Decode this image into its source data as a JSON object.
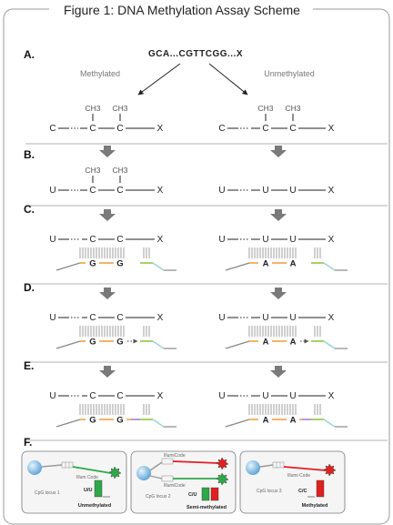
{
  "title": "Figure 1: DNA Methylation Assay Scheme",
  "steps": {
    "A": "A.",
    "B": "B.",
    "C": "C.",
    "D": "D.",
    "E": "E.",
    "F": "F."
  },
  "sequence": "GCA...CGTTCGG...X",
  "methylated_label": "Methylated",
  "unmethylated_label": "Unmethylated",
  "ch3": "CH3",
  "strands": {
    "C_m": [
      "C",
      "C",
      "C",
      "X"
    ],
    "C_u": [
      "C",
      "C",
      "C",
      "X"
    ],
    "U_m": [
      "U",
      "C",
      "C",
      "X"
    ],
    "U_u": [
      "U",
      "U",
      "U",
      "X"
    ]
  },
  "probe_bases": {
    "methylated": [
      "G",
      "G"
    ],
    "unmethylated": [
      "A",
      "A"
    ]
  },
  "panels": [
    {
      "barcode": "Illum Code",
      "locus": "CpG locus 1",
      "ratio": "U/U",
      "status": "Unmethylated"
    },
    {
      "barcode": "IllumiCode",
      "barcode2": "IllumiCode",
      "locus": "CpG locus 2",
      "ratio": "C/U",
      "status": "Semi-methylated"
    },
    {
      "barcode": "Illumi Code",
      "locus": "CpG locus 3",
      "ratio": "C/C",
      "status": "Methylated"
    }
  ],
  "colors": {
    "frame": "#9a9a9a",
    "orange": "#f5a040",
    "green": "#8cc63f",
    "teal": "#9ad8d8",
    "purple": "#b07cc6",
    "signal_green": "#2fa84a",
    "signal_red": "#e02020",
    "bead": "#6ab0e0"
  }
}
